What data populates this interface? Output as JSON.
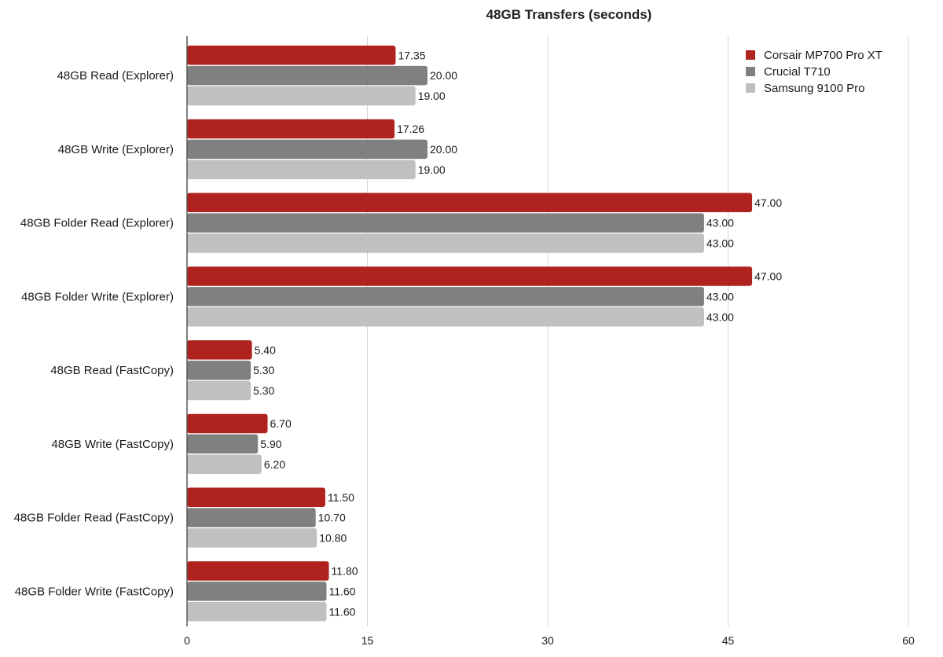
{
  "chart_data": {
    "type": "bar",
    "orientation": "horizontal",
    "title": "48GB Transfers (seconds)",
    "xlabel": "",
    "ylabel": "",
    "xlim": [
      0,
      60
    ],
    "ticks": [
      0,
      15,
      30,
      45,
      60
    ],
    "grid": true,
    "legend_position": "top-right",
    "categories": [
      "48GB Read (Explorer)",
      "48GB Write (Explorer)",
      "48GB Folder Read (Explorer)",
      "48GB Folder Write (Explorer)",
      "48GB Read (FastCopy)",
      "48GB Write (FastCopy)",
      "48GB Folder Read (FastCopy)",
      "48GB Folder Write (FastCopy)"
    ],
    "series": [
      {
        "name": "Corsair MP700 Pro XT",
        "color": "#b0221d",
        "values": [
          17.35,
          17.26,
          47.0,
          47.0,
          5.4,
          6.7,
          11.5,
          11.8
        ],
        "labels": [
          "17.35",
          "17.26",
          "47.00",
          "47.00",
          "5.40",
          "6.70",
          "11.50",
          "11.80"
        ]
      },
      {
        "name": "Crucial T710",
        "color": "#808080",
        "values": [
          20.0,
          20.0,
          43.0,
          43.0,
          5.3,
          5.9,
          10.7,
          11.6
        ],
        "labels": [
          "20.00",
          "20.00",
          "43.00",
          "43.00",
          "5.30",
          "5.90",
          "10.70",
          "11.60"
        ]
      },
      {
        "name": "Samsung 9100 Pro",
        "color": "#c0c0c0",
        "values": [
          19.0,
          19.0,
          43.0,
          43.0,
          5.3,
          6.2,
          10.8,
          11.6
        ],
        "labels": [
          "19.00",
          "19.00",
          "43.00",
          "43.00",
          "5.30",
          "6.20",
          "10.80",
          "11.60"
        ]
      }
    ]
  }
}
